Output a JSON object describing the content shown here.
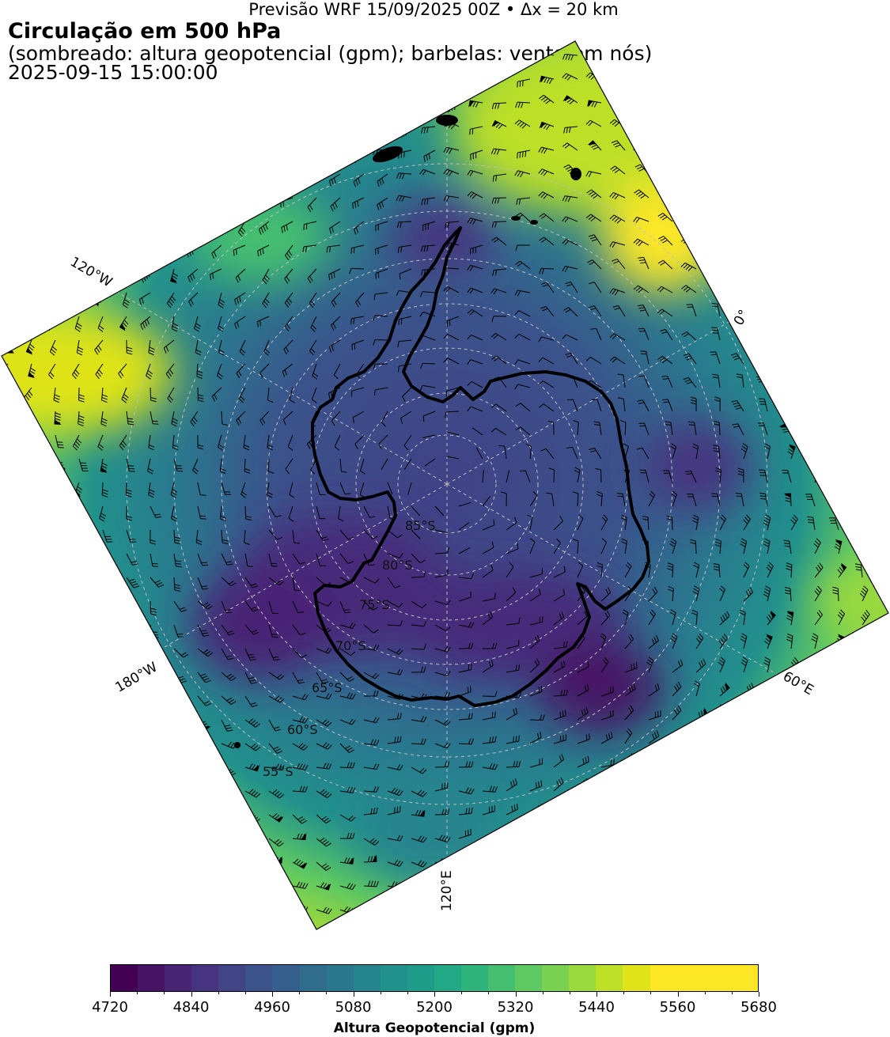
{
  "header": {
    "run_info": "Previsão WRF 15/09/2025 00Z • Δx = 20 km",
    "title": "Circulação em 500 hPa",
    "subtitle": "(sombreado: altura geopotencial (gpm); barbelas: vento em nós)",
    "valid_time": "2025-09-15 15:00:00"
  },
  "map": {
    "projection": "south-polar-stereographic",
    "field": "geopotential-height-500hPa",
    "overlay": "wind-barbs-knots",
    "meridian_labels": [
      "120°W",
      "0°",
      "60°E",
      "120°E",
      "180°W"
    ],
    "parallel_labels": [
      "85°S",
      "80°S",
      "75°S",
      "70°S",
      "65°S",
      "60°S",
      "55°S"
    ],
    "colors": {
      "land_outline": "#000000",
      "grid": "#bfbfbf",
      "frame": "#000000"
    }
  },
  "colorbar": {
    "title": "Altura Geopotencial (gpm)",
    "min": 4720,
    "max": 5680,
    "step": 40,
    "tick_labels": [
      "4720",
      "4840",
      "4960",
      "5080",
      "5200",
      "5320",
      "5440",
      "5560",
      "5680"
    ],
    "colors": [
      "#440154",
      "#471365",
      "#482475",
      "#463480",
      "#414487",
      "#3b528b",
      "#355f8d",
      "#2f6c8e",
      "#2a788e",
      "#25848e",
      "#21918c",
      "#1e9c89",
      "#22a884",
      "#2fb47c",
      "#44bf70",
      "#5ec962",
      "#7ad151",
      "#9bd93c",
      "#bddf26",
      "#dfe318",
      "#fde725",
      "#fde725",
      "#fde725",
      "#fde725"
    ]
  }
}
